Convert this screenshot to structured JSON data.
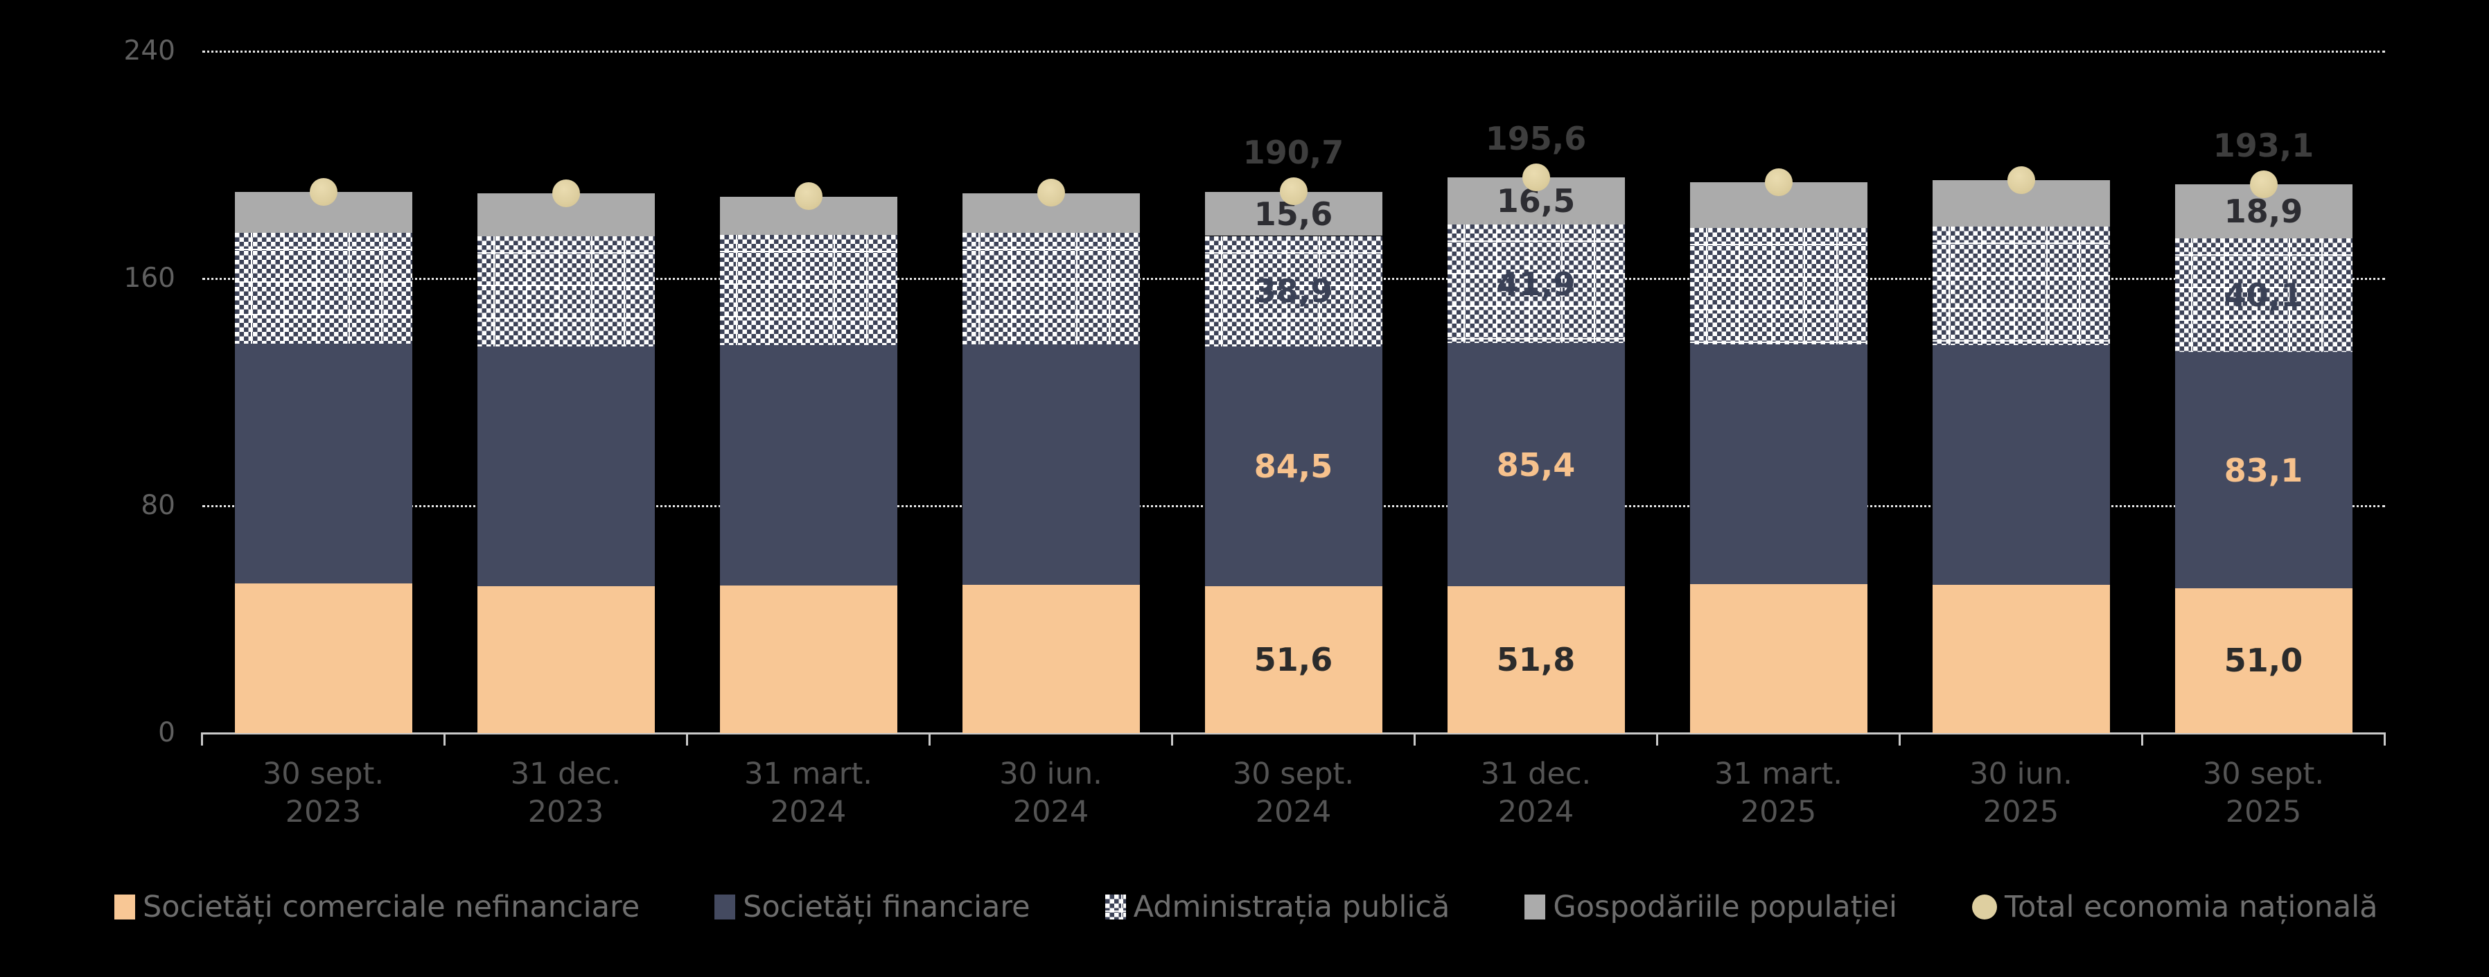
{
  "background_color": "#000000",
  "chart_data": {
    "type": "stacked-bar",
    "categories": [
      [
        "30 sept.",
        "2023"
      ],
      [
        "31 dec.",
        "2023"
      ],
      [
        "31 mart.",
        "2024"
      ],
      [
        "30 iun.",
        "2024"
      ],
      [
        "30 sept.",
        "2024"
      ],
      [
        "31 dec.",
        "2024"
      ],
      [
        "31 mart.",
        "2025"
      ],
      [
        "30 iun.",
        "2025"
      ],
      [
        "30 sept.",
        "2025"
      ]
    ],
    "series": [
      {
        "name": "Societăți comerciale nefinanciare",
        "fill": "solid",
        "color": "#F8C795",
        "label_color": "#2B2B2B",
        "values": [
          52.6,
          51.7,
          52.0,
          52.3,
          51.6,
          51.8,
          52.4,
          52.2,
          51.0
        ],
        "shown_labels": {
          "4": "51,6",
          "5": "51,8",
          "8": "51,0"
        }
      },
      {
        "name": "Societăți financiare",
        "fill": "solid",
        "color": "#444A60",
        "label_color": "#F7C28D",
        "values": [
          84.4,
          84.3,
          84.6,
          84.6,
          84.5,
          85.4,
          84.4,
          84.5,
          83.1
        ],
        "shown_labels": {
          "4": "84,5",
          "5": "85,4",
          "8": "83,1"
        }
      },
      {
        "name": "Administrația publică",
        "fill": "checker",
        "color": "#3C4257",
        "color2": "#FFFFFF",
        "label_color": "#3A4156",
        "values": [
          39.2,
          38.9,
          38.7,
          39.2,
          38.9,
          41.9,
          41.0,
          41.5,
          40.1
        ],
        "shown_labels": {
          "4": "38,9",
          "5": "41,9",
          "8": "40,1"
        }
      },
      {
        "name": "Gospodăriile populației",
        "fill": "solid",
        "color": "#ABABAB",
        "label_color": "#2D2D32",
        "values": [
          14.3,
          15.1,
          13.5,
          13.9,
          15.6,
          16.5,
          16.2,
          16.4,
          18.9
        ],
        "shown_labels": {
          "4": "15,6",
          "5": "16,5",
          "8": "18,9"
        }
      }
    ],
    "totals_series": {
      "name": "Total economia națională",
      "marker_color": "#DECFA0",
      "values": [
        190.5,
        190.0,
        189.0,
        190.3,
        190.7,
        195.6,
        194.0,
        194.6,
        193.1
      ],
      "shown_labels": {
        "4": "190,7",
        "5": "195,6",
        "8": "193,1"
      }
    },
    "total_label_color": "#3E3E3E",
    "ylim": [
      0,
      240
    ],
    "yticks": [
      0,
      80,
      160,
      240
    ],
    "ytick_labels": [
      "0",
      "80",
      "160",
      "240"
    ],
    "grid": "dotted horizontal gridlines at 80, 160, 240",
    "legend_position": "bottom"
  },
  "axis_style": {
    "ytick_label_color": "#606060",
    "category_label_color": "#545454",
    "axis_line_color": "#C9C9C9"
  },
  "legend_style": {
    "text_color": "#6E6E6E"
  }
}
